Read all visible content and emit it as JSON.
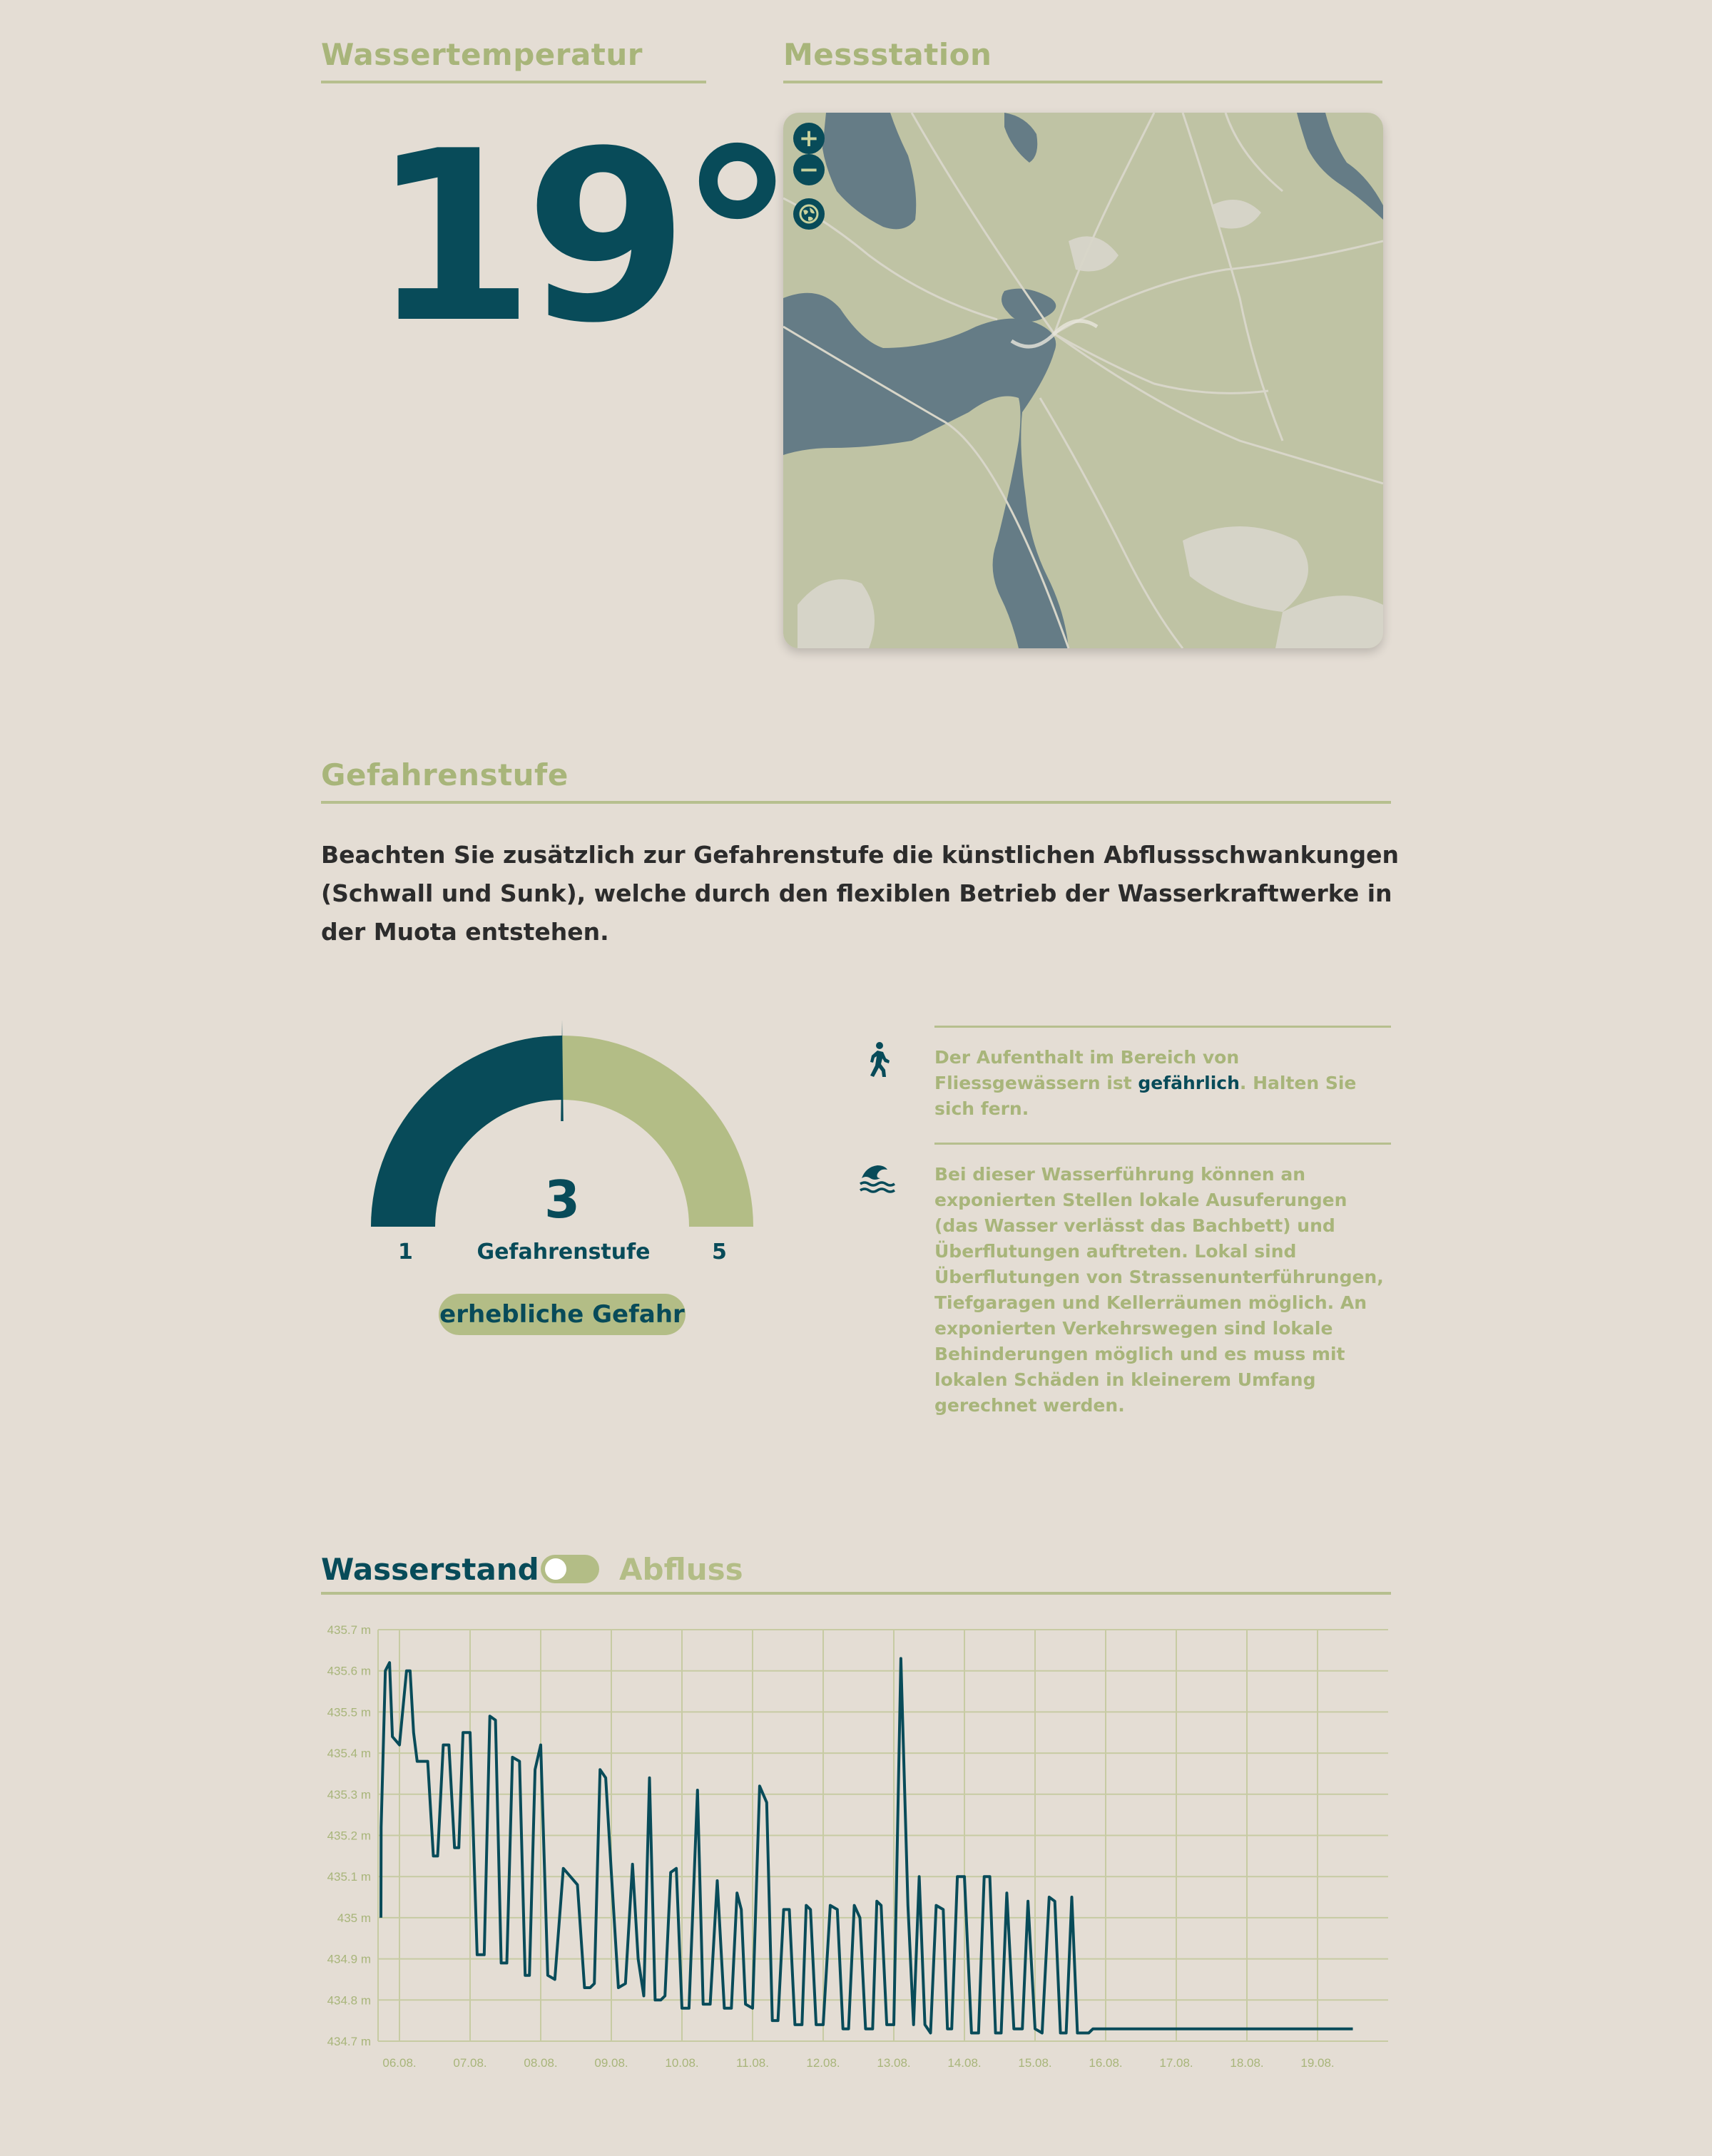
{
  "temperature": {
    "heading": "Wassertemperatur",
    "value": "19°"
  },
  "station": {
    "heading": "Messstation",
    "controls": {
      "zoom_in": "+",
      "zoom_out": "−",
      "locate_icon": "globe-icon"
    }
  },
  "danger": {
    "heading": "Gefahrenstufe",
    "note": "Beachten Sie zusätzlich zur Gefahrenstufe die künstlichen Abflussschwankungen (Schwall und Sunk), welche durch den flexiblen Betrieb der Wasserkraftwerke in der Muota entstehen.",
    "gauge": {
      "level": "3",
      "level_value": 3,
      "min": "1",
      "max": "5",
      "caption": "Gefahrenstufe"
    },
    "badge": "erhebliche Gefahr",
    "info": [
      {
        "icon": "walking-person-icon",
        "text_before": "Der Aufenthalt im Bereich von Fliessgewässern ist ",
        "highlight": "gefährlich",
        "text_after": ". Halten Sie sich fern."
      },
      {
        "icon": "flood-wave-icon",
        "text": "Bei dieser Wasserführung können an exponierten Stellen lokale Ausuferungen (das Wasser verlässt das Bachbett) und Überflutungen auftreten. Lokal sind Überflutungen von Strassenunterführungen, Tiefgaragen und Kellerräumen möglich. An exponierten Verkehrswegen sind lokale Behinderungen möglich und es muss mit lokalen Schäden in kleinerem Umfang gerechnet werden."
      }
    ]
  },
  "chart_section": {
    "tab_active": "Wasserstand",
    "tab_inactive": "Abfluss",
    "toggle_on": false
  },
  "colors": {
    "background": "#e4ddd4",
    "primary": "#084b59",
    "accent": "#a8b57a",
    "map_land": "#bfc3a4",
    "map_water": "#657c86"
  },
  "chart_data": {
    "type": "line",
    "ylabel": "",
    "xlabel": "",
    "ylim": [
      434.7,
      435.7
    ],
    "y_ticks": [
      "434.7 m",
      "434.8 m",
      "434.9 m",
      "435 m",
      "435.1 m",
      "435.2 m",
      "435.3 m",
      "435.4 m",
      "435.5 m",
      "435.6 m",
      "435.7 m"
    ],
    "x_ticks": [
      "06.08.",
      "07.08.",
      "08.08.",
      "09.08.",
      "10.08.",
      "11.08.",
      "12.08.",
      "13.08.",
      "14.08.",
      "15.08.",
      "16.08.",
      "17.08.",
      "18.08.",
      "19.08."
    ],
    "grid": true,
    "series": [
      {
        "x": [
          0.0,
          0.04,
          0.1,
          0.16,
          0.2,
          0.3,
          0.4,
          0.45,
          0.5,
          0.55,
          0.62,
          0.7,
          0.78,
          0.84,
          0.92,
          1.0,
          1.08,
          1.14,
          1.2,
          1.3,
          1.4,
          1.5,
          1.58,
          1.66,
          1.74,
          1.82,
          1.9,
          2.0,
          2.08,
          2.14,
          2.22,
          2.3,
          2.4,
          2.5,
          2.62,
          2.72,
          2.82,
          2.92,
          3.0,
          3.06,
          3.14,
          3.22,
          3.3,
          3.4,
          3.5,
          3.6,
          3.68,
          3.76,
          3.84,
          3.92,
          4.0,
          4.06,
          4.14,
          4.22,
          4.3,
          4.4,
          4.52,
          4.6,
          4.7,
          4.8,
          4.9,
          5.0,
          5.08,
          5.14,
          5.2,
          5.3,
          5.4,
          5.5,
          5.58,
          5.66,
          5.74,
          5.82,
          5.9,
          6.0,
          6.06,
          6.12,
          6.2,
          6.3,
          6.4,
          6.5,
          6.58,
          6.66,
          6.74,
          6.82,
          6.9,
          7.0,
          7.06,
          7.12,
          7.2,
          7.3,
          7.4,
          7.5,
          7.58,
          7.66,
          7.74,
          7.82,
          7.9,
          8.0,
          8.06,
          8.12,
          8.2,
          8.3,
          8.4,
          8.5,
          8.58,
          8.66,
          8.74,
          8.82,
          8.9,
          9.0,
          9.06,
          9.12,
          9.2,
          9.3,
          9.4,
          9.5,
          9.58,
          9.66,
          9.74,
          9.82,
          9.9,
          10.0,
          10.06,
          10.12,
          10.2,
          10.3,
          10.4,
          10.5,
          10.58,
          10.66,
          10.74,
          10.82,
          10.9,
          11.0,
          11.06,
          11.12,
          11.2,
          11.3,
          11.4,
          11.5,
          11.58,
          11.66,
          11.74,
          11.82,
          11.9,
          12.0,
          12.06,
          12.12,
          12.2,
          12.3,
          12.4,
          12.5,
          12.58,
          12.66,
          12.74,
          12.82,
          12.9,
          13.0,
          13.06,
          13.12,
          13.2,
          13.3,
          13.4,
          13.5,
          13.58,
          13.66,
          13.8
        ],
        "values": [
          435.0,
          435.22,
          435.6,
          435.62,
          435.44,
          435.42,
          435.6,
          435.6,
          435.45,
          435.38,
          435.38,
          435.38,
          435.15,
          435.15,
          435.42,
          435.42,
          435.17,
          435.17,
          435.45,
          435.45,
          434.91,
          434.91,
          435.49,
          435.48,
          434.89,
          434.89,
          435.39,
          435.38,
          434.86,
          434.86,
          435.36,
          435.42,
          434.86,
          434.85,
          435.12,
          435.1,
          435.08,
          434.83,
          434.83,
          434.84,
          435.36,
          435.34,
          435.11,
          434.83,
          434.84,
          435.13,
          434.9,
          434.81,
          435.34,
          434.8,
          434.8,
          434.81,
          435.11,
          435.12,
          434.78,
          434.78,
          435.31,
          434.79,
          434.79,
          435.09,
          434.78,
          434.78,
          435.06,
          435.02,
          434.79,
          434.78,
          435.32,
          435.28,
          434.75,
          434.75,
          435.02,
          435.02,
          434.74,
          434.74,
          435.03,
          435.02,
          434.74,
          434.74,
          435.03,
          435.02,
          434.73,
          434.73,
          435.03,
          435.0,
          434.73,
          434.73,
          435.04,
          435.03,
          434.74,
          434.74,
          435.63,
          435.03,
          434.74,
          435.1,
          434.74,
          434.72,
          435.03,
          435.02,
          434.73,
          434.73,
          435.1,
          435.1,
          434.72,
          434.72,
          435.1,
          435.1,
          434.72,
          434.72,
          435.06,
          434.73,
          434.73,
          434.73,
          435.04,
          434.73,
          434.72,
          435.05,
          435.04,
          434.72,
          434.72,
          435.05,
          434.72,
          434.72,
          434.72,
          434.73,
          434.73,
          434.73,
          434.73,
          434.73,
          434.73,
          434.73,
          434.73,
          434.73,
          434.73,
          434.73,
          434.73,
          434.73,
          434.73,
          434.73,
          434.73,
          434.73,
          434.73,
          434.73,
          434.73,
          434.73,
          434.73,
          434.73,
          434.73,
          434.73,
          434.73,
          434.73,
          434.73,
          434.73,
          434.73,
          434.73,
          434.73,
          434.73,
          434.73,
          434.73,
          434.73,
          434.73,
          434.73,
          434.73,
          434.73,
          434.73,
          434.73,
          434.73,
          434.73
        ]
      }
    ]
  }
}
